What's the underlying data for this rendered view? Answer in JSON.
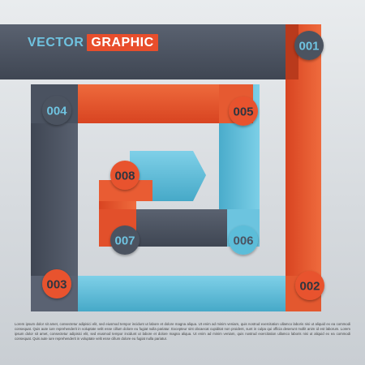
{
  "colors": {
    "gray": "#4b5361",
    "orange": "#e8532e",
    "blue": "#5bbdd9"
  },
  "title": {
    "word1": "VECTOR",
    "word2": "GRAPHIC"
  },
  "badges": [
    {
      "label": "001",
      "color": "gray"
    },
    {
      "label": "002",
      "color": "orange"
    },
    {
      "label": "003",
      "color": "orange"
    },
    {
      "label": "004",
      "color": "gray"
    },
    {
      "label": "005",
      "color": "orange"
    },
    {
      "label": "006",
      "color": "blue"
    },
    {
      "label": "007",
      "color": "gray"
    },
    {
      "label": "008",
      "color": "orange"
    }
  ],
  "footer_text": "Lorem ipsum dolor sit amet, consectetur adipisici elit, sed eiusmod tempor incidunt ut labore et dolore magna aliqua. Ut enim ad minim veniam, quis nostrud exercitation ullamco laboris nisi ut aliquid ex ea commodi consequat. Quis aute iure reprehenderit in voluptate velit esse cillum dolore eu fugiat nulla pariatur. Excepteur sint obcaecat cupiditat non proident, sunt in culpa qui officia deserunt mollit anim id est laborum. Lorem ipsum dolor sit amet, consectetur adipisici elit, sed eiusmod tempor incidunt ut labore et dolore magna aliqua. Ut enim ad minim veniam, quis nostrud exercitation ullamco laboris nisi ut aliquid ex ea commodi consequat. Quis aute iure reprehenderit in voluptate velit esse cillum dolore eu fugiat nulla pariatur."
}
